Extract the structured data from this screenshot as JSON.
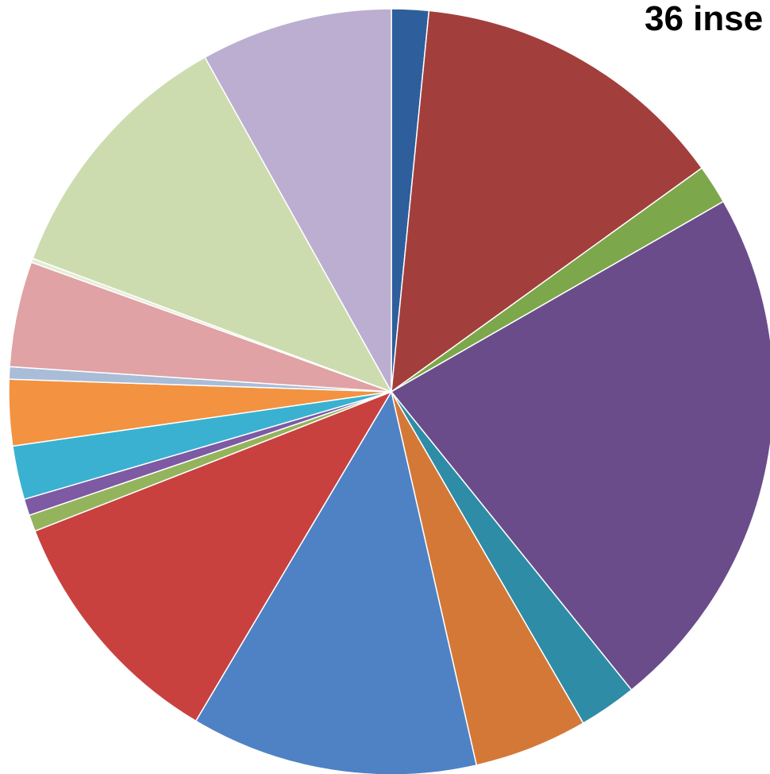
{
  "chart_data": {
    "type": "pie",
    "title": "36 inse",
    "legend": "none",
    "start": "top",
    "direction": "clockwise",
    "slices": [
      {
        "value": 1.8,
        "color": "#2e5e9c"
      },
      {
        "value": 15.5,
        "color": "#a23f3c"
      },
      {
        "value": 1.9,
        "color": "#7ca74a"
      },
      {
        "value": 25.8,
        "color": "#6b4c8a"
      },
      {
        "value": 2.8,
        "color": "#2e8ca6"
      },
      {
        "value": 5.5,
        "color": "#d47838"
      },
      {
        "value": 13.9,
        "color": "#4f82c4"
      },
      {
        "value": 12.1,
        "color": "#c8413f"
      },
      {
        "value": 0.8,
        "color": "#93b45c"
      },
      {
        "value": 0.8,
        "color": "#7d5aa3"
      },
      {
        "value": 2.6,
        "color": "#3ab1d1"
      },
      {
        "value": 3.2,
        "color": "#f39240"
      },
      {
        "value": 0.6,
        "color": "#a9bcd8"
      },
      {
        "value": 5.1,
        "color": "#e0a2a4"
      },
      {
        "value": 0.2,
        "color": "#e6ecd8"
      },
      {
        "value": 12.9,
        "color": "#cddcaf"
      },
      {
        "value": 9.3,
        "color": "#bcaed1"
      }
    ]
  }
}
